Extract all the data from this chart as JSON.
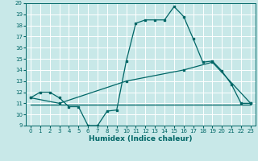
{
  "title": "",
  "xlabel": "Humidex (Indice chaleur)",
  "bg_color": "#c8e8e8",
  "grid_color": "#ffffff",
  "line_color": "#006666",
  "xlim": [
    -0.5,
    23.5
  ],
  "ylim": [
    9,
    20
  ],
  "xticks": [
    0,
    1,
    2,
    3,
    4,
    5,
    6,
    7,
    8,
    9,
    10,
    11,
    12,
    13,
    14,
    15,
    16,
    17,
    18,
    19,
    20,
    21,
    22,
    23
  ],
  "yticks": [
    9,
    10,
    11,
    12,
    13,
    14,
    15,
    16,
    17,
    18,
    19,
    20
  ],
  "curve1_x": [
    0,
    1,
    2,
    3,
    4,
    5,
    6,
    7,
    8,
    9,
    10,
    11,
    12,
    13,
    14,
    15,
    16,
    17,
    18,
    19,
    20,
    21,
    22,
    23
  ],
  "curve1_y": [
    11.5,
    12.0,
    12.0,
    11.5,
    10.7,
    10.7,
    9.0,
    9.0,
    10.3,
    10.4,
    14.8,
    18.2,
    18.5,
    18.5,
    18.5,
    19.7,
    18.8,
    16.8,
    14.7,
    14.8,
    13.9,
    12.7,
    11.0,
    11.0
  ],
  "curve2_x": [
    0,
    3,
    10,
    16,
    19,
    23
  ],
  "curve2_y": [
    11.5,
    11.0,
    13.0,
    14.0,
    14.7,
    11.0
  ],
  "curve3_x": [
    0,
    23
  ],
  "curve3_y": [
    10.9,
    10.9
  ],
  "tick_fontsize": 5.0,
  "xlabel_fontsize": 6.5,
  "lw": 0.9,
  "ms": 2.0
}
